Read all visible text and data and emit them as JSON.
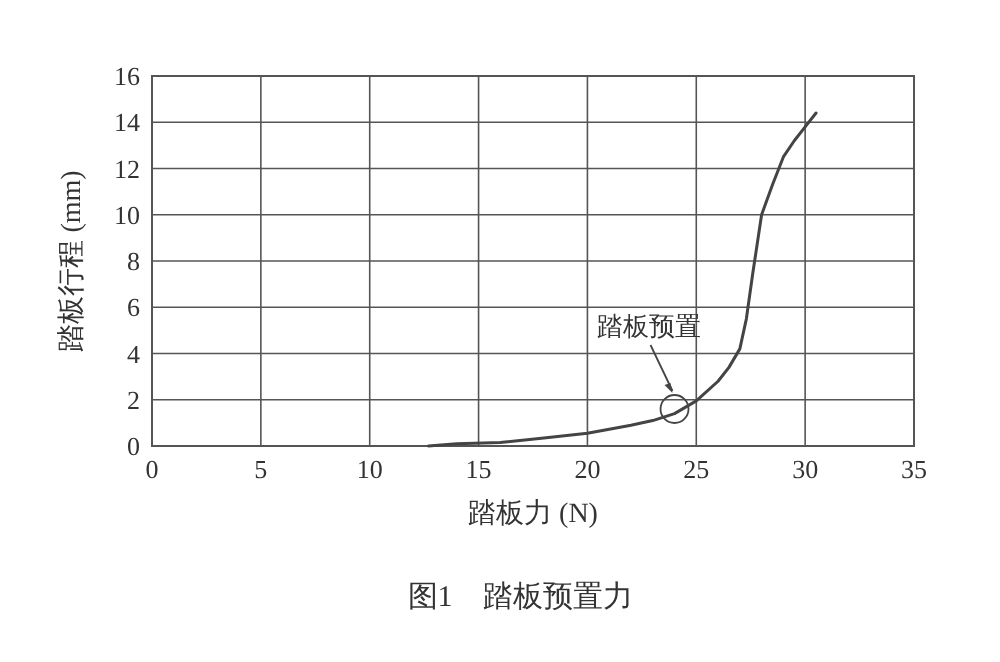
{
  "chart_data": {
    "type": "line",
    "xlabel": "踏板力 (N)",
    "ylabel": "踏板行程 (mm)",
    "xlim": [
      0,
      35
    ],
    "xticks": [
      0,
      5,
      10,
      15,
      20,
      25,
      30,
      35
    ],
    "ylim": [
      0,
      16
    ],
    "yticks": [
      0,
      2,
      4,
      6,
      8,
      10,
      12,
      14,
      16
    ],
    "grid": true,
    "marker": "none",
    "line_style": "solid",
    "series": [
      {
        "color": "#444444",
        "x": [
          12.7,
          14,
          16,
          18,
          20,
          22,
          23,
          24,
          25,
          26,
          26.5,
          27,
          27.3,
          27.6,
          28,
          28.5,
          29,
          29.5,
          30,
          30.5
        ],
        "values": [
          0,
          0.1,
          0.15,
          0.35,
          0.55,
          0.9,
          1.1,
          1.4,
          1.95,
          2.8,
          3.4,
          4.2,
          5.5,
          7.5,
          10,
          11.3,
          12.5,
          13.2,
          13.8,
          14.4
        ]
      }
    ],
    "annotations": [
      {
        "text": "踏板预置",
        "x": 24,
        "y": 1.6
      },
      "图1　踏板预置力"
    ]
  }
}
